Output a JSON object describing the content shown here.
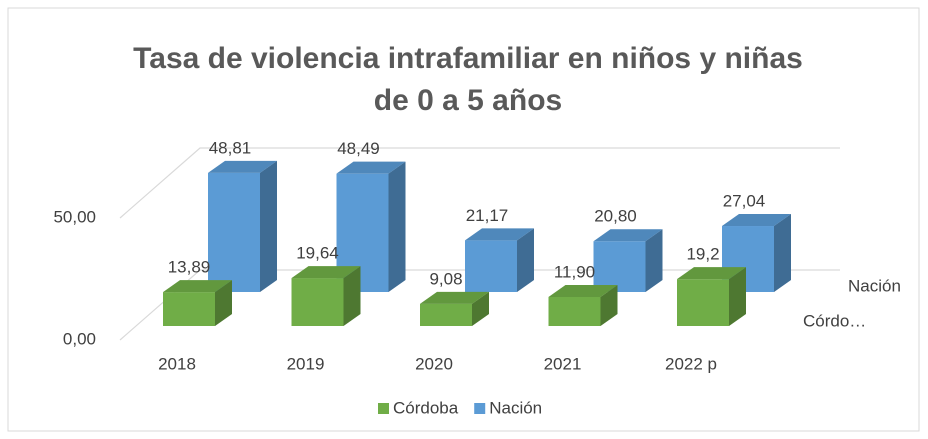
{
  "chart_data": {
    "type": "bar3d",
    "title": [
      "Tasa de violencia intrafamiliar en niños y niñas",
      "de 0 a 5 años"
    ],
    "categories": [
      "2018",
      "2019",
      "2020",
      "2021",
      "2022 p"
    ],
    "series": [
      {
        "name": "Córdoba",
        "color": "#70ad47",
        "values": [
          13.89,
          19.64,
          9.08,
          11.9,
          19.2
        ],
        "value_labels": [
          "13,89",
          "19,64",
          "9,08",
          "11,90",
          "19,2"
        ]
      },
      {
        "name": "Nación",
        "color": "#5b9bd5",
        "values": [
          48.81,
          48.49,
          21.17,
          20.8,
          27.04
        ],
        "value_labels": [
          "48,81",
          "48,49",
          "21,17",
          "20,80",
          "27,04"
        ]
      }
    ],
    "depth_labels": [
      "Córdo…",
      "Nación"
    ],
    "ylim": [
      0,
      50
    ],
    "yticks": [
      {
        "value": 0,
        "label": "0,00"
      },
      {
        "value": 50,
        "label": "50,00"
      }
    ],
    "grid": true,
    "legend": "bottom"
  }
}
